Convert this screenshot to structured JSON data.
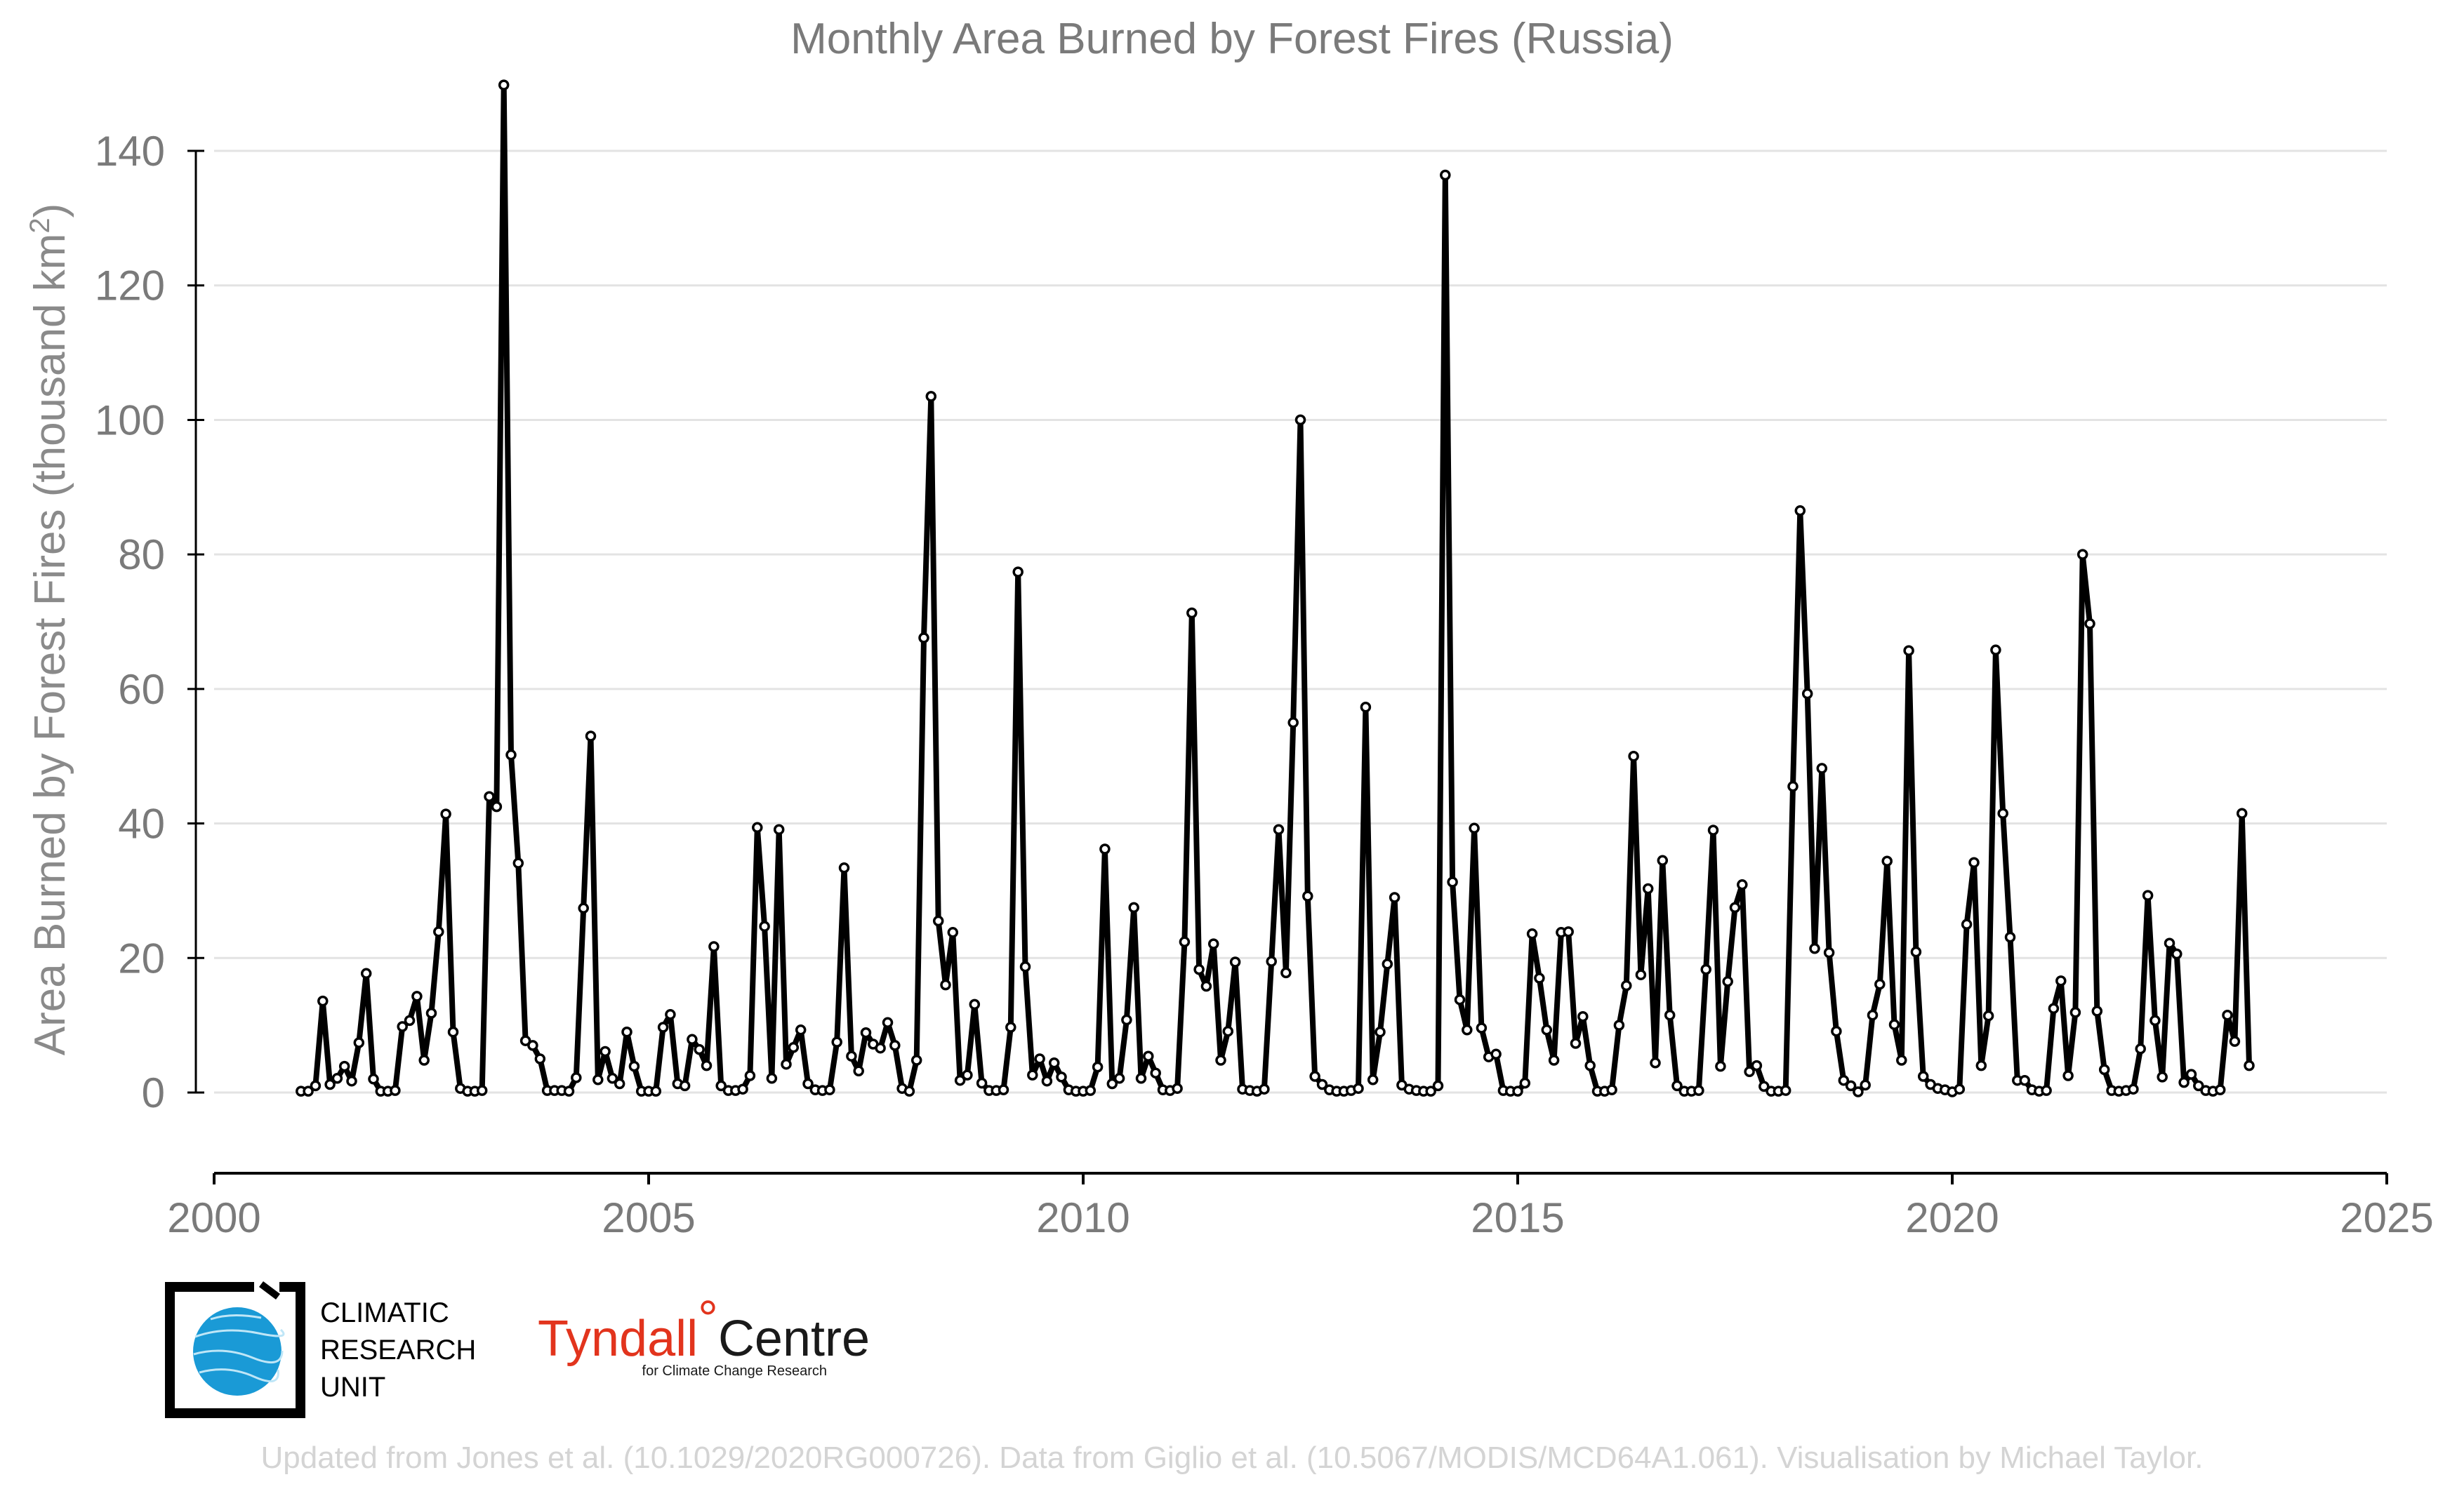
{
  "chart_data": {
    "type": "line",
    "title": "Monthly Area Burned by Forest Fires (Russia)",
    "ylabel": "Area Burned by Forest Fires (thousand km²)",
    "xlabel": "",
    "xlim": [
      2000,
      2025
    ],
    "ylim": [
      -12,
      152
    ],
    "x_ticks": [
      "2000",
      "2005",
      "2010",
      "2015",
      "2020",
      "2025"
    ],
    "y_ticks": [
      "0",
      "20",
      "40",
      "60",
      "80",
      "100",
      "120",
      "140"
    ],
    "grid": true,
    "series": [
      {
        "start": 2001.0,
        "step_months": 1,
        "values": [
          0.2,
          0.2,
          1,
          13.6,
          1.2,
          2.1,
          3.9,
          1.7,
          7.4,
          17.7,
          2,
          0.2,
          0.2,
          0.3,
          9.8,
          10.7,
          14.3,
          4.8,
          11.8,
          23.9,
          41.4,
          9,
          0.6,
          0.2,
          0.2,
          0.3,
          44,
          42.5,
          149.8,
          50.2,
          34.1,
          7.7,
          7,
          5,
          0.3,
          0.3,
          0.3,
          0.2,
          2.2,
          27.4,
          53,
          1.9,
          6.1,
          2.1,
          1.3,
          9,
          3.9,
          0.2,
          0.2,
          0.2,
          9.7,
          11.6,
          1.3,
          1,
          7.9,
          6.4,
          4,
          21.7,
          1,
          0.3,
          0.3,
          0.5,
          2.5,
          39.4,
          24.7,
          2.1,
          39.1,
          4.2,
          6.7,
          9.3,
          1.3,
          0.4,
          0.3,
          0.4,
          7.5,
          33.4,
          5.4,
          3.2,
          8.9,
          7.2,
          6.6,
          10.4,
          7,
          0.6,
          0.2,
          4.8,
          67.6,
          103.5,
          25.5,
          16,
          23.8,
          1.8,
          2.6,
          13.1,
          1.4,
          0.3,
          0.3,
          0.4,
          9.7,
          77.4,
          18.7,
          2.6,
          5,
          1.7,
          4.4,
          2.3,
          0.4,
          0.2,
          0.2,
          0.3,
          3.8,
          36.2,
          1.3,
          2.1,
          10.8,
          27.5,
          2.1,
          5.4,
          2.9,
          0.4,
          0.3,
          0.6,
          22.4,
          71.3,
          18.3,
          15.8,
          22.1,
          4.8,
          9.1,
          19.4,
          0.5,
          0.3,
          0.2,
          0.5,
          19.5,
          39.1,
          17.8,
          55,
          100,
          29.2,
          2.4,
          1.2,
          0.4,
          0.2,
          0.2,
          0.3,
          0.6,
          57.3,
          1.9,
          9,
          19.1,
          29,
          1.1,
          0.5,
          0.3,
          0.2,
          0.2,
          1,
          136.4,
          31.3,
          13.8,
          9.3,
          39.3,
          9.6,
          5.3,
          5.7,
          0.3,
          0.2,
          0.2,
          1.4,
          23.6,
          17,
          9.3,
          4.8,
          23.8,
          23.9,
          7.3,
          11.3,
          4,
          0.2,
          0.2,
          0.4,
          10,
          15.9,
          50,
          17.5,
          30.3,
          4.4,
          34.5,
          11.5,
          1,
          0.2,
          0.2,
          0.3,
          18.3,
          39,
          3.9,
          16.5,
          27.5,
          30.9,
          3.1,
          4,
          0.9,
          0.2,
          0.2,
          0.3,
          45.5,
          86.5,
          59.3,
          21.4,
          48.2,
          20.8,
          9.1,
          1.8,
          1,
          0.1,
          1.1,
          11.5,
          16.1,
          34.4,
          10.1,
          4.8,
          65.7,
          20.9,
          2.4,
          1.2,
          0.6,
          0.4,
          0.1,
          0.5,
          25,
          34.2,
          4,
          11.4,
          65.8,
          41.5,
          23.1,
          1.8,
          1.8,
          0.4,
          0.2,
          0.3,
          12.5,
          16.6,
          2.5,
          11.9,
          80,
          69.7,
          12.1,
          3.4,
          0.3,
          0.2,
          0.3,
          0.5,
          6.5,
          29.3,
          10.7,
          2.3,
          22.2,
          20.6,
          1.5,
          2.7,
          1,
          0.3,
          0.2,
          0.4,
          11.5,
          7.6,
          41.5,
          4
        ]
      }
    ]
  },
  "logos": {
    "cru_lines": [
      "CLIMATIC",
      "RESEARCH",
      "UNIT"
    ],
    "tyndall_name_a": "Tyndall",
    "tyndall_degree": "°",
    "tyndall_name_b": "Centre",
    "tyndall_subtitle": "for Climate Change Research"
  },
  "credit": "Updated from Jones et al. (10.1029/2020RG000726). Data from Giglio et al. (10.5067/MODIS/MCD64A1.061). Visualisation by Michael Taylor.",
  "colors": {
    "line": "#000000",
    "grid": "#e3e3e3",
    "cru_blue": "#1a9ad6",
    "tyndall_red": "#e2341d"
  }
}
